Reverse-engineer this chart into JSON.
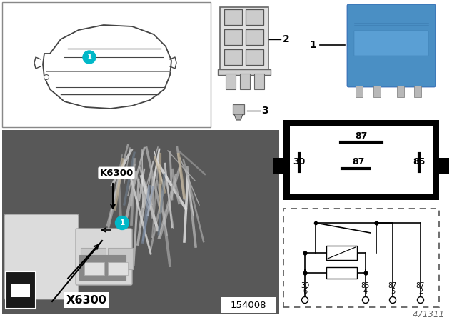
{
  "background_color": "#ffffff",
  "part_number": "471311",
  "ref_number": "154008",
  "cyan_color": "#00b8c8",
  "relay_blue": "#4a8fc4",
  "k6300_label": "K6300",
  "x6300_label": "X6300",
  "photo_dark": "#5a5a5a",
  "photo_mid": "#7a7a7a",
  "photo_light": "#a0a0a0",
  "white_plastic": "#d8d8d8",
  "relay_grey": "#c8c8c8"
}
